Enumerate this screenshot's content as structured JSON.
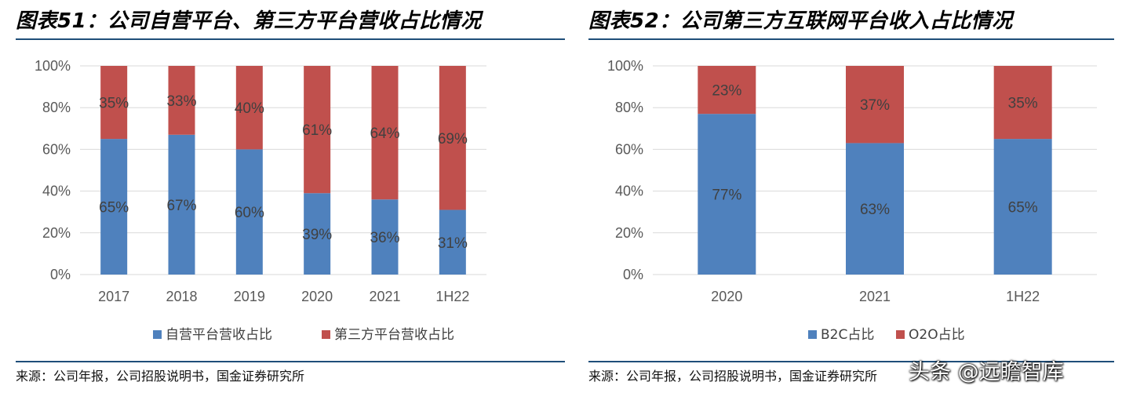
{
  "panels": [
    {
      "title": "图表51：公司自营平台、第三方平台营收占比情况",
      "source": "来源：公司年报，公司招股说明书，国金证券研究所"
    },
    {
      "title": "图表52：公司第三方互联网平台收入占比情况",
      "source": "来源：公司年报，公司招股说明书，国金证券研究所"
    }
  ],
  "watermark": "头条 @远瞻智库",
  "chart_data": [
    {
      "type": "bar",
      "stacked": true,
      "categories": [
        "2017",
        "2018",
        "2019",
        "2020",
        "2021",
        "1H22"
      ],
      "series": [
        {
          "name": "自营平台营收占比",
          "values": [
            65,
            67,
            60,
            39,
            36,
            31
          ],
          "labels": [
            "65%",
            "67%",
            "60%",
            "39%",
            "36%",
            "31%"
          ],
          "color": "#4f81bd"
        },
        {
          "name": "第三方平台营收占比",
          "values": [
            35,
            33,
            40,
            61,
            64,
            69
          ],
          "labels": [
            "35%",
            "33%",
            "40%",
            "61%",
            "64%",
            "69%"
          ],
          "color": "#c0504d"
        }
      ],
      "ylim": [
        0,
        100
      ],
      "yticks": [
        "0%",
        "20%",
        "40%",
        "60%",
        "80%",
        "100%"
      ],
      "grid": true,
      "legend_position": "bottom"
    },
    {
      "type": "bar",
      "stacked": true,
      "categories": [
        "2020",
        "2021",
        "1H22"
      ],
      "series": [
        {
          "name": "B2C占比",
          "values": [
            77,
            63,
            65
          ],
          "labels": [
            "77%",
            "63%",
            "65%"
          ],
          "color": "#4f81bd"
        },
        {
          "name": "O2O占比",
          "values": [
            23,
            37,
            35
          ],
          "labels": [
            "23%",
            "37%",
            "35%"
          ],
          "color": "#c0504d"
        }
      ],
      "ylim": [
        0,
        100
      ],
      "yticks": [
        "0%",
        "20%",
        "40%",
        "60%",
        "80%",
        "100%"
      ],
      "grid": true,
      "legend_position": "bottom"
    }
  ]
}
